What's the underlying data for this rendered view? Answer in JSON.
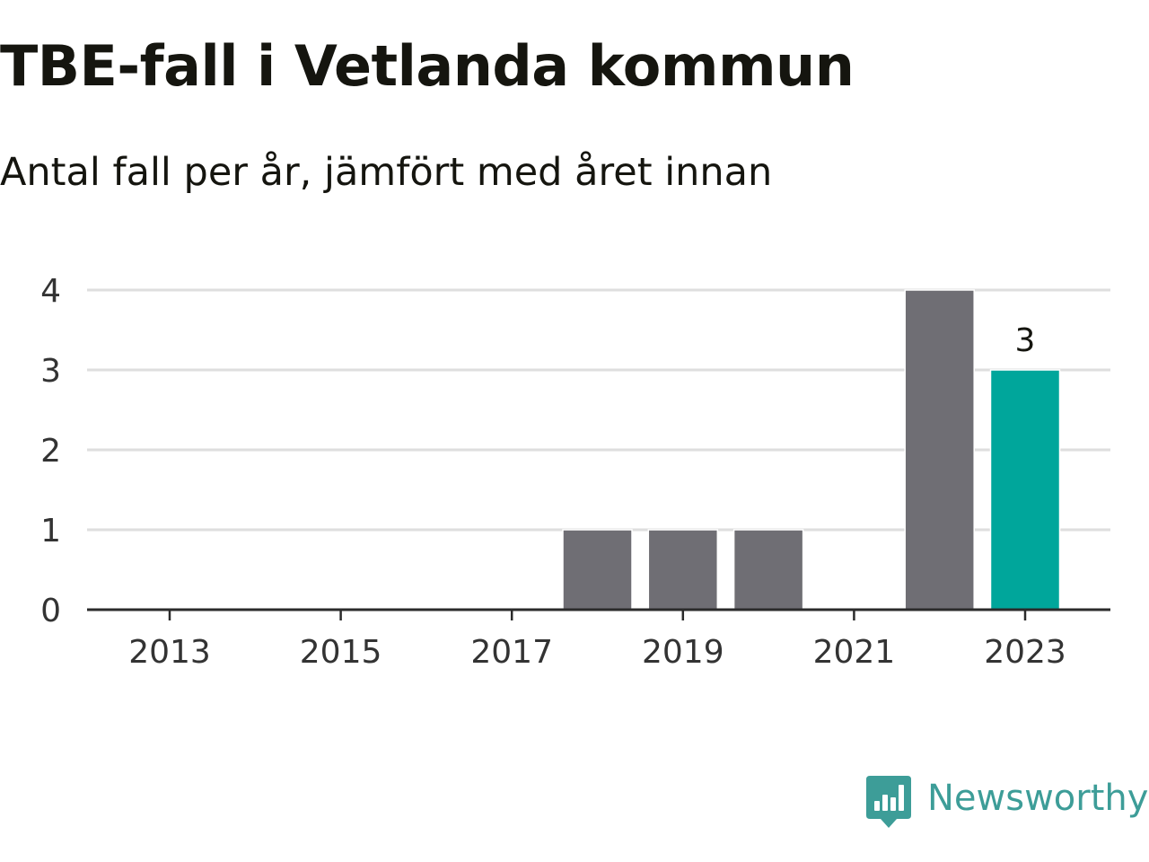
{
  "title": "TBE-fall i Vetlanda kommun",
  "subtitle": "Antal fall per år, jämfört med året innan",
  "brand": {
    "name": "Newsworthy",
    "color": "#3d9d98",
    "icon": "newsworthy-chart-bubble-icon"
  },
  "colors": {
    "bar": "#6f6e74",
    "highlight": "#00a69b",
    "grid": "#dedede",
    "axis": "#2b2b2b",
    "text": "#333333"
  },
  "chart_data": {
    "type": "bar",
    "title": "TBE-fall i Vetlanda kommun",
    "subtitle": "Antal fall per år, jämfört med året innan",
    "xlabel": "",
    "ylabel": "",
    "categories": [
      "2013",
      "2014",
      "2015",
      "2016",
      "2017",
      "2018",
      "2019",
      "2020",
      "2021",
      "2022",
      "2023"
    ],
    "values": [
      0,
      0,
      0,
      0,
      0,
      1,
      1,
      1,
      0,
      4,
      3
    ],
    "highlight_category": "2023",
    "highlight_label": "3",
    "x_tick_labels": [
      "2013",
      "2015",
      "2017",
      "2019",
      "2021",
      "2023"
    ],
    "y_tick_labels": [
      "0",
      "1",
      "2",
      "3",
      "4"
    ],
    "ylim": [
      0,
      4
    ],
    "grid": true,
    "legend": "none"
  }
}
